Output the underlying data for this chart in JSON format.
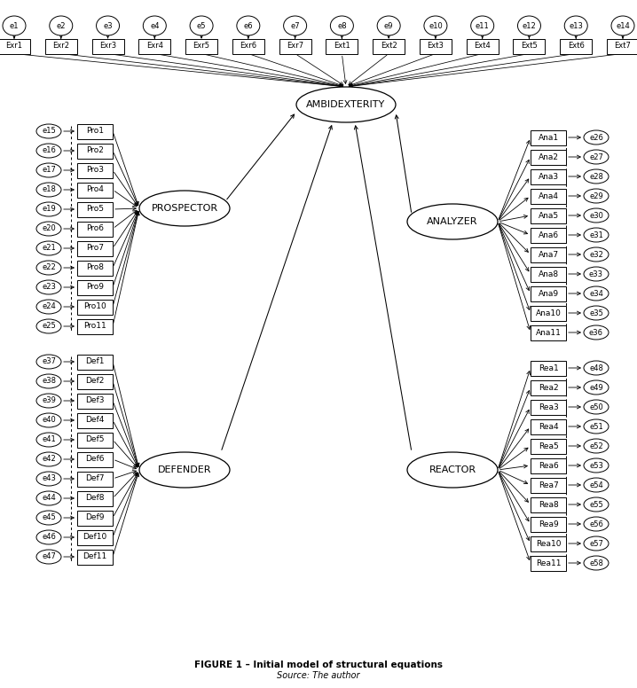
{
  "title": "FIGURE 1 – Initial model of structural equations",
  "subtitle": "Source: The author",
  "bg_color": "#ffffff",
  "top_row_ellipses": [
    "e1",
    "e2",
    "e3",
    "e4",
    "e5",
    "e6",
    "e7",
    "e8",
    "e9",
    "e10",
    "e11",
    "e12",
    "e13",
    "e14"
  ],
  "top_row_boxes": [
    "Exr1",
    "Exr2",
    "Exr3",
    "Exr4",
    "Exr5",
    "Exr6",
    "Exr7",
    "Ext1",
    "Ext2",
    "Ext3",
    "Ext4",
    "Ext5",
    "Ext6",
    "Ext7"
  ],
  "prospector_items": [
    "Pro1",
    "Pro2",
    "Pro3",
    "Pro4",
    "Pro5",
    "Pro6",
    "Pro7",
    "Pro8",
    "Pro9",
    "Pro10",
    "Pro11"
  ],
  "prospector_errors": [
    "e15",
    "e16",
    "e17",
    "e18",
    "e19",
    "e20",
    "e21",
    "e22",
    "e23",
    "e24",
    "e25"
  ],
  "defender_items": [
    "Def1",
    "Def2",
    "Def3",
    "Def4",
    "Def5",
    "Def6",
    "Def7",
    "Def8",
    "Def9",
    "Def10",
    "Def11"
  ],
  "defender_errors": [
    "e37",
    "e38",
    "e39",
    "e40",
    "e41",
    "e42",
    "e43",
    "e44",
    "e45",
    "e46",
    "e47"
  ],
  "analyzer_items": [
    "Ana1",
    "Ana2",
    "Ana3",
    "Ana4",
    "Ana5",
    "Ana6",
    "Ana7",
    "Ana8",
    "Ana9",
    "Ana10",
    "Ana11"
  ],
  "analyzer_errors": [
    "e26",
    "e27",
    "e28",
    "e29",
    "e30",
    "e31",
    "e32",
    "e33",
    "e34",
    "e35",
    "e36"
  ],
  "reactor_items": [
    "Rea1",
    "Rea2",
    "Rea3",
    "Rea4",
    "Rea5",
    "Rea6",
    "Rea7",
    "Rea8",
    "Rea9",
    "Rea10",
    "Rea11"
  ],
  "reactor_errors": [
    "e48",
    "e49",
    "e50",
    "e51",
    "e52",
    "e53",
    "e54",
    "e55",
    "e56",
    "e57",
    "e58"
  ]
}
